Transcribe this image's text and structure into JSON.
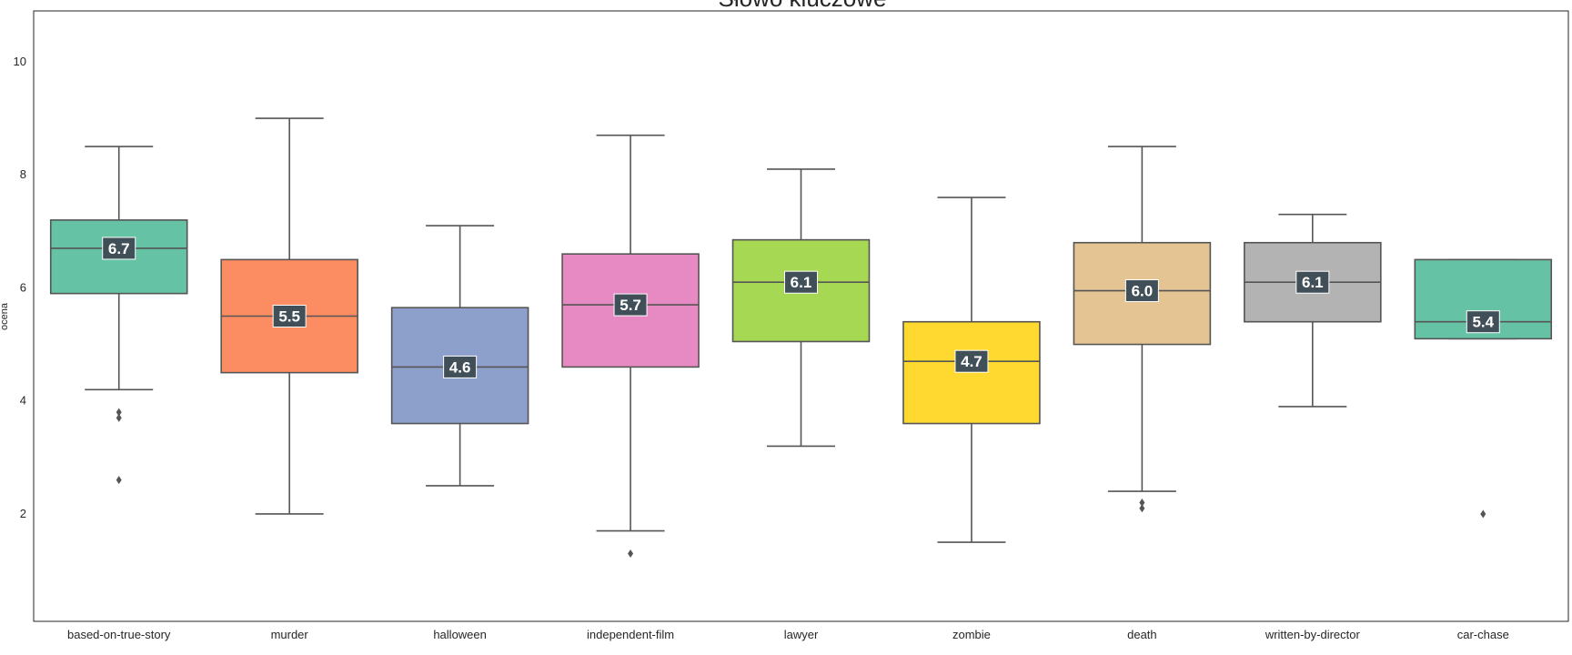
{
  "chart_data": {
    "type": "box",
    "title": "Słowo kluczowe",
    "xlabel": "",
    "ylabel": "ocena",
    "ylim": [
      0.1,
      10.9
    ],
    "yticks": [
      2,
      4,
      6,
      8,
      10
    ],
    "grid": false,
    "median_label_bg": "#415058",
    "line_color": "#555555",
    "boxes": [
      {
        "category": "based-on-true-story",
        "color": "#66c2a5",
        "whisker_low": 4.2,
        "q1": 5.9,
        "median": 6.7,
        "q3": 7.2,
        "whisker_high": 8.5,
        "outliers": [
          3.8,
          3.7,
          2.6
        ],
        "median_label": "6.7"
      },
      {
        "category": "murder",
        "color": "#fc8d62",
        "whisker_low": 2.0,
        "q1": 4.5,
        "median": 5.5,
        "q3": 6.5,
        "whisker_high": 9.0,
        "outliers": [],
        "median_label": "5.5"
      },
      {
        "category": "halloween",
        "color": "#8da0cb",
        "whisker_low": 2.5,
        "q1": 3.6,
        "median": 4.6,
        "q3": 5.65,
        "whisker_high": 7.1,
        "outliers": [],
        "median_label": "4.6"
      },
      {
        "category": "independent-film",
        "color": "#e78ac3",
        "whisker_low": 1.7,
        "q1": 4.6,
        "median": 5.7,
        "q3": 6.6,
        "whisker_high": 8.7,
        "outliers": [
          1.3
        ],
        "median_label": "5.7"
      },
      {
        "category": "lawyer",
        "color": "#a6d854",
        "whisker_low": 3.2,
        "q1": 5.05,
        "median": 6.1,
        "q3": 6.85,
        "whisker_high": 8.1,
        "outliers": [],
        "median_label": "6.1"
      },
      {
        "category": "zombie",
        "color": "#ffd92f",
        "whisker_low": 1.5,
        "q1": 3.6,
        "median": 4.7,
        "q3": 5.4,
        "whisker_high": 7.6,
        "outliers": [],
        "median_label": "4.7"
      },
      {
        "category": "death",
        "color": "#e5c494",
        "whisker_low": 2.4,
        "q1": 5.0,
        "median": 5.95,
        "q3": 6.8,
        "whisker_high": 8.5,
        "outliers": [
          2.2,
          2.1
        ],
        "median_label": "6.0"
      },
      {
        "category": "written-by-director",
        "color": "#b3b3b3",
        "whisker_low": 3.9,
        "q1": 5.4,
        "median": 6.1,
        "q3": 6.8,
        "whisker_high": 7.3,
        "outliers": [],
        "median_label": "6.1"
      },
      {
        "category": "car-chase",
        "color": "#66c2a5",
        "whisker_low": 5.1,
        "q1": 5.1,
        "median": 5.4,
        "q3": 6.5,
        "whisker_high": 6.5,
        "outliers": [
          2.0
        ],
        "median_label": "5.4"
      }
    ]
  }
}
